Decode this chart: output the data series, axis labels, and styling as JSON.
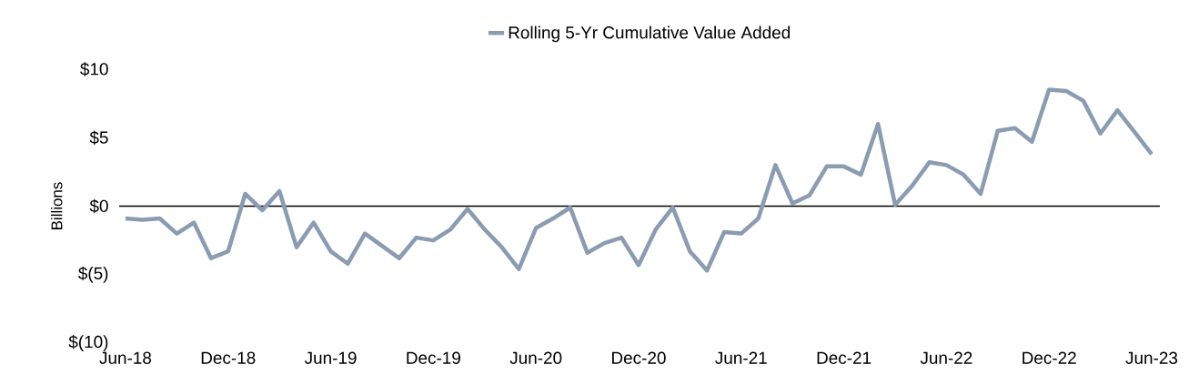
{
  "chart_data": {
    "type": "line",
    "ylabel": "Billions",
    "categories": [
      "Jun-18",
      null,
      null,
      null,
      null,
      null,
      "Dec-18",
      null,
      null,
      null,
      null,
      null,
      "Jun-19",
      null,
      null,
      null,
      null,
      null,
      "Dec-19",
      null,
      null,
      null,
      null,
      null,
      "Jun-20",
      null,
      null,
      null,
      null,
      null,
      "Dec-20",
      null,
      null,
      null,
      null,
      null,
      "Jun-21",
      null,
      null,
      null,
      null,
      null,
      "Dec-21",
      null,
      null,
      null,
      null,
      null,
      "Jun-22",
      null,
      null,
      null,
      null,
      null,
      "Dec-22",
      null,
      null,
      null,
      null,
      null,
      "Jun-23"
    ],
    "series": [
      {
        "name": "Rolling 5-Yr Cumulative Value Added",
        "color": "#8a9bb2",
        "values": [
          -0.9,
          -1.0,
          -0.9,
          -2.0,
          -1.2,
          -3.8,
          -3.3,
          0.9,
          -0.3,
          1.1,
          -3.0,
          -1.2,
          -3.3,
          -4.2,
          -2.0,
          -2.9,
          -3.8,
          -2.3,
          -2.5,
          -1.7,
          -0.2,
          -1.7,
          -3.0,
          -4.6,
          -1.6,
          -0.9,
          -0.1,
          -3.4,
          -2.7,
          -2.3,
          -4.3,
          -1.7,
          -0.1,
          -3.3,
          -4.7,
          -1.9,
          -2.0,
          -0.9,
          3.0,
          0.2,
          0.8,
          2.9,
          2.9,
          2.3,
          6.0,
          0.1,
          1.5,
          3.2,
          3.0,
          2.3,
          0.9,
          5.5,
          5.7,
          4.7,
          8.5,
          8.4,
          7.7,
          5.3,
          7.0,
          5.4,
          3.8
        ]
      }
    ],
    "ylim": [
      -10,
      10
    ],
    "yticks": [
      {
        "value": -10,
        "label": "$(10)"
      },
      {
        "value": -5,
        "label": "$(5)"
      },
      {
        "value": 0,
        "label": "$0"
      },
      {
        "value": 5,
        "label": "$5"
      },
      {
        "value": 10,
        "label": "$10"
      }
    ],
    "ref_lines": [
      {
        "axis": "y",
        "value": 0,
        "color": "#000000"
      }
    ],
    "legend": "top",
    "marker": "none",
    "line_style": "solid"
  }
}
